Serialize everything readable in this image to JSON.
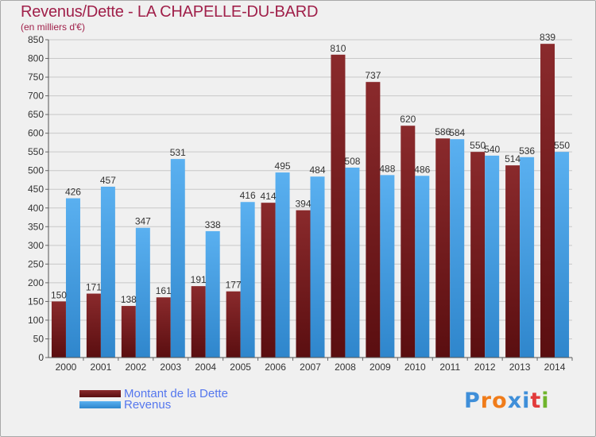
{
  "title": "Revenus/Dette - LA CHAPELLE-DU-BARD",
  "subtitle": "(en milliers d'€)",
  "colors": {
    "background": "#f0f0f0",
    "title": "#a0204a",
    "dette": "#7a1a1c",
    "revenus": "#4aa3e8",
    "legend_text": "#5577ee"
  },
  "legend": {
    "dette_label": "Montant de la Dette",
    "revenus_label": "Revenus",
    "dette_icon": "dark-red-bar-swatch",
    "revenus_icon": "blue-bar-swatch"
  },
  "logo": {
    "text": "Proxiti",
    "letters": [
      "P",
      "r",
      "o",
      "x",
      "i",
      "t",
      "i"
    ],
    "colors": [
      "#3f8fd9",
      "#f07c1a",
      "#f07c1a",
      "#3f8fd9",
      "#3f8fd9",
      "#e23b3b",
      "#6fb52c"
    ]
  },
  "chart_data": {
    "type": "bar",
    "title": "Revenus/Dette - LA CHAPELLE-DU-BARD",
    "subtitle": "(en milliers d'€)",
    "categories": [
      "2000",
      "2001",
      "2002",
      "2003",
      "2004",
      "2005",
      "2006",
      "2007",
      "2008",
      "2009",
      "2010",
      "2011",
      "2012",
      "2013",
      "2014"
    ],
    "series": [
      {
        "name": "Montant de la Dette",
        "values": [
          150,
          171,
          138,
          161,
          191,
          177,
          414,
          394,
          810,
          737,
          620,
          586,
          550,
          514,
          839
        ]
      },
      {
        "name": "Revenus",
        "values": [
          426,
          457,
          347,
          531,
          338,
          416,
          495,
          484,
          508,
          488,
          486,
          584,
          540,
          536,
          550
        ]
      }
    ],
    "ylim": [
      0,
      850
    ],
    "yticks": [
      0,
      50,
      100,
      150,
      200,
      250,
      300,
      350,
      400,
      450,
      500,
      550,
      600,
      650,
      700,
      750,
      800,
      850
    ],
    "grid": true,
    "legend_position": "bottom-left"
  }
}
